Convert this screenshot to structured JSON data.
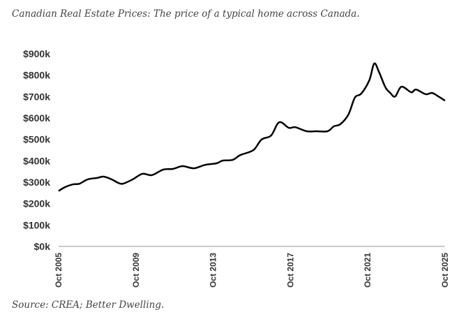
{
  "chart_data": {
    "type": "line",
    "title": "Canadian Real Estate Prices: The price of a typical home across Canada.",
    "source": "Source: CREA; Better Dwelling.",
    "xlabel": "",
    "ylabel": "",
    "ylim": [
      0,
      900000
    ],
    "xlim": [
      "2005-10",
      "2025-10"
    ],
    "yticks": [
      0,
      100000,
      200000,
      300000,
      400000,
      500000,
      600000,
      700000,
      800000,
      900000
    ],
    "ytick_labels": [
      "$0k",
      "$100k",
      "$200k",
      "$300k",
      "$400k",
      "$500k",
      "$600k",
      "$700k",
      "$800k",
      "$900k"
    ],
    "xticks": [
      "2005-10",
      "2009-10",
      "2013-10",
      "2017-10",
      "2021-10",
      "2025-10"
    ],
    "xtick_labels": [
      "Oct 2005",
      "Oct 2009",
      "Oct 2013",
      "Oct 2017",
      "Oct 2021",
      "Oct 2025"
    ],
    "grid": false,
    "line_color": "#000000",
    "series": [
      {
        "x": [
          "2005-10",
          "2006-02",
          "2006-07",
          "2006-11",
          "2007-04",
          "2007-10",
          "2008-02",
          "2008-07",
          "2008-11",
          "2009-02",
          "2009-08",
          "2010-02",
          "2010-08",
          "2011-03",
          "2011-09",
          "2012-03",
          "2012-10",
          "2013-05",
          "2013-12",
          "2014-04",
          "2014-10",
          "2015-03",
          "2015-11",
          "2016-04",
          "2016-10",
          "2017-03",
          "2017-09",
          "2018-01",
          "2018-08",
          "2019-02",
          "2019-09",
          "2020-01",
          "2020-05",
          "2020-10",
          "2021-02",
          "2021-06",
          "2021-11",
          "2022-02",
          "2022-05",
          "2022-09",
          "2022-12",
          "2023-03",
          "2023-07",
          "2024-01",
          "2024-04",
          "2024-10",
          "2025-02",
          "2025-06",
          "2025-10"
        ],
        "values": [
          259000,
          277000,
          290000,
          293000,
          313000,
          320000,
          326000,
          313000,
          297000,
          293000,
          313000,
          339000,
          333000,
          359000,
          362000,
          375000,
          365000,
          381000,
          388000,
          401000,
          404000,
          427000,
          450000,
          499000,
          518000,
          580000,
          554000,
          557000,
          538000,
          538000,
          538000,
          561000,
          571000,
          616000,
          695000,
          714000,
          776000,
          854000,
          815000,
          743000,
          717000,
          700000,
          746000,
          720000,
          733000,
          711000,
          717000,
          700000,
          681000
        ]
      }
    ]
  }
}
